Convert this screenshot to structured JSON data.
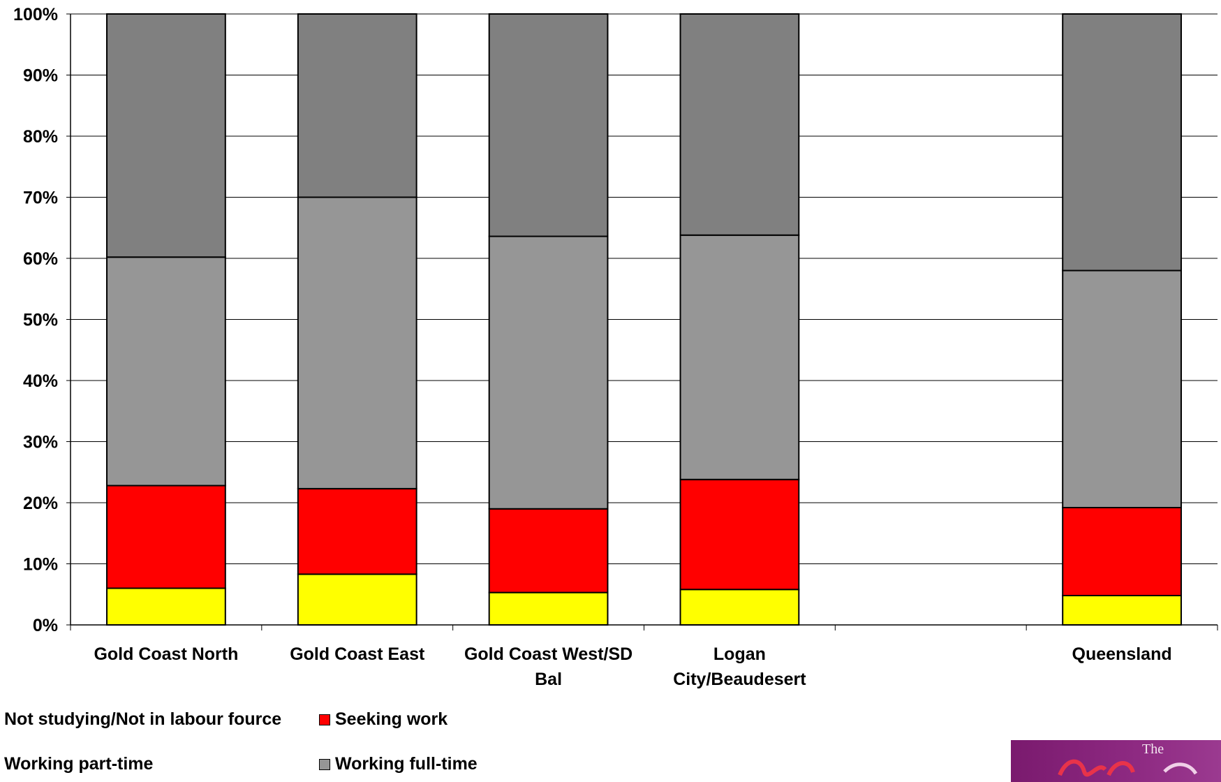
{
  "chart_data": {
    "type": "bar",
    "stacked": true,
    "percent": true,
    "categories": [
      "Gold Coast North",
      "Gold Coast East",
      "Gold Coast West/SD Bal",
      "Logan City/Beaudesert",
      "",
      "Queensland"
    ],
    "category_lines": [
      [
        "Gold Coast North"
      ],
      [
        "Gold Coast East"
      ],
      [
        "Gold Coast West/SD",
        "Bal"
      ],
      [
        "Logan",
        "City/Beaudesert"
      ],
      [],
      [
        "Queensland"
      ]
    ],
    "series": [
      {
        "name": "Not studying/Not in labour fource",
        "color": "#FFFF00",
        "values": [
          6.0,
          8.3,
          5.3,
          5.8,
          null,
          4.8
        ]
      },
      {
        "name": "Seeking work",
        "color": "#FF0000",
        "values": [
          16.8,
          14.0,
          13.7,
          18.0,
          null,
          14.4
        ]
      },
      {
        "name": "Working part-time",
        "color": "#969696",
        "values": [
          37.4,
          47.7,
          44.6,
          40.0,
          null,
          38.8
        ]
      },
      {
        "name": "Working full-time",
        "color": "#808080",
        "values": [
          39.8,
          30.0,
          36.4,
          36.2,
          null,
          42.0
        ]
      }
    ],
    "ylim": [
      0,
      100
    ],
    "yticks": [
      "0%",
      "10%",
      "20%",
      "30%",
      "40%",
      "50%",
      "60%",
      "70%",
      "80%",
      "90%",
      "100%"
    ],
    "grid": true,
    "legend_position": "bottom-left"
  },
  "legend": {
    "items": [
      {
        "label": "Not studying/Not in labour fource",
        "color": "#FFFF00",
        "swatch": false
      },
      {
        "label": "Seeking work",
        "color": "#FF0000",
        "swatch": true
      },
      {
        "label": "Working part-time",
        "color": "#969696",
        "swatch": false
      },
      {
        "label": "Working full-time",
        "color": "#969696",
        "swatch": true
      }
    ]
  },
  "logo": {
    "text": "The"
  }
}
